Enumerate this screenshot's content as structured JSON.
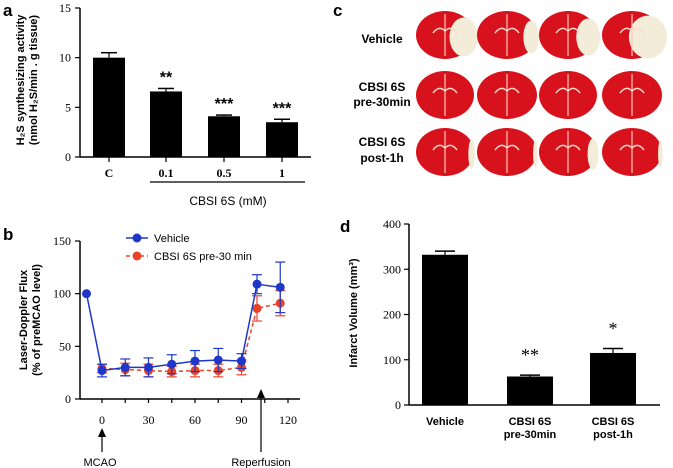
{
  "panel_letters": {
    "a": "a",
    "b": "b",
    "c": "c",
    "d": "d"
  },
  "colors": {
    "vehicle": "#1f37c8",
    "cbsi": "#e8442a",
    "bar": "#000000",
    "brain_red": "#d8121c",
    "brain_pale": "#f3ecd9"
  },
  "chart_data": [
    {
      "id": "a",
      "type": "bar",
      "ylabel_line1": "H₂S synthesizing activity",
      "ylabel_line2": "(nmol H₂S/min . g tissue)",
      "categories": [
        "C",
        "0.1",
        "0.5",
        "1"
      ],
      "values": [
        10.0,
        6.6,
        4.1,
        3.5
      ],
      "errors": [
        0.5,
        0.3,
        0.12,
        0.3
      ],
      "annotations": [
        "",
        "**",
        "***",
        "***"
      ],
      "ylim": [
        0,
        15
      ],
      "yticks": [
        "0",
        "5",
        "10",
        "15"
      ],
      "group_label": "CBSI 6S (mM)"
    },
    {
      "id": "b",
      "type": "line",
      "ylabel_line1": "Laser-Doppler Flux",
      "ylabel_line2": "(% of preMCAO level)",
      "ylim": [
        0,
        150
      ],
      "yticks": [
        "0",
        "50",
        "100",
        "150"
      ],
      "xlim": [
        -10,
        130
      ],
      "xticks": [
        "0",
        "30",
        "60",
        "90",
        "120"
      ],
      "series": [
        {
          "name": "Vehicle",
          "x": [
            -10,
            0,
            15,
            30,
            45,
            60,
            75,
            90,
            100,
            115
          ],
          "y": [
            100,
            27,
            30,
            30,
            33,
            36,
            37,
            36,
            109,
            106
          ],
          "err": [
            0,
            6,
            8,
            9,
            9,
            10,
            11,
            7,
            9,
            24
          ]
        },
        {
          "name": "CBSI 6S pre-30 min",
          "x": [
            0,
            15,
            30,
            45,
            60,
            75,
            90,
            100,
            115
          ],
          "y": [
            29,
            28,
            27,
            26,
            27,
            27,
            30,
            86,
            91
          ],
          "err": [
            4,
            6,
            6,
            5,
            6,
            6,
            7,
            12,
            12
          ]
        }
      ],
      "arrows": [
        "MCAO",
        "Reperfusion"
      ]
    },
    {
      "id": "d",
      "type": "bar",
      "ylabel": "Infarct Volume (mm³)",
      "categories": [
        "Vehicle",
        "CBSI 6S pre-30min",
        "CBSI 6S post-1h"
      ],
      "category_line1": [
        "Vehicle",
        "CBSI 6S",
        "CBSI 6S"
      ],
      "category_line2": [
        "",
        "pre-30min",
        "post-1h"
      ],
      "values": [
        332,
        63,
        115
      ],
      "errors": [
        8,
        3,
        10
      ],
      "annotations": [
        "",
        "**",
        "*"
      ],
      "ylim": [
        0,
        400
      ],
      "yticks": [
        "0",
        "100",
        "200",
        "300",
        "400"
      ]
    }
  ],
  "panel_c": {
    "row_labels": [
      {
        "line1": "Vehicle",
        "line2": ""
      },
      {
        "line1": "CBSI 6S",
        "line2": "pre-30min"
      },
      {
        "line1": "CBSI 6S",
        "line2": "post-1h"
      }
    ],
    "slice_images": "brain-slice-image"
  }
}
